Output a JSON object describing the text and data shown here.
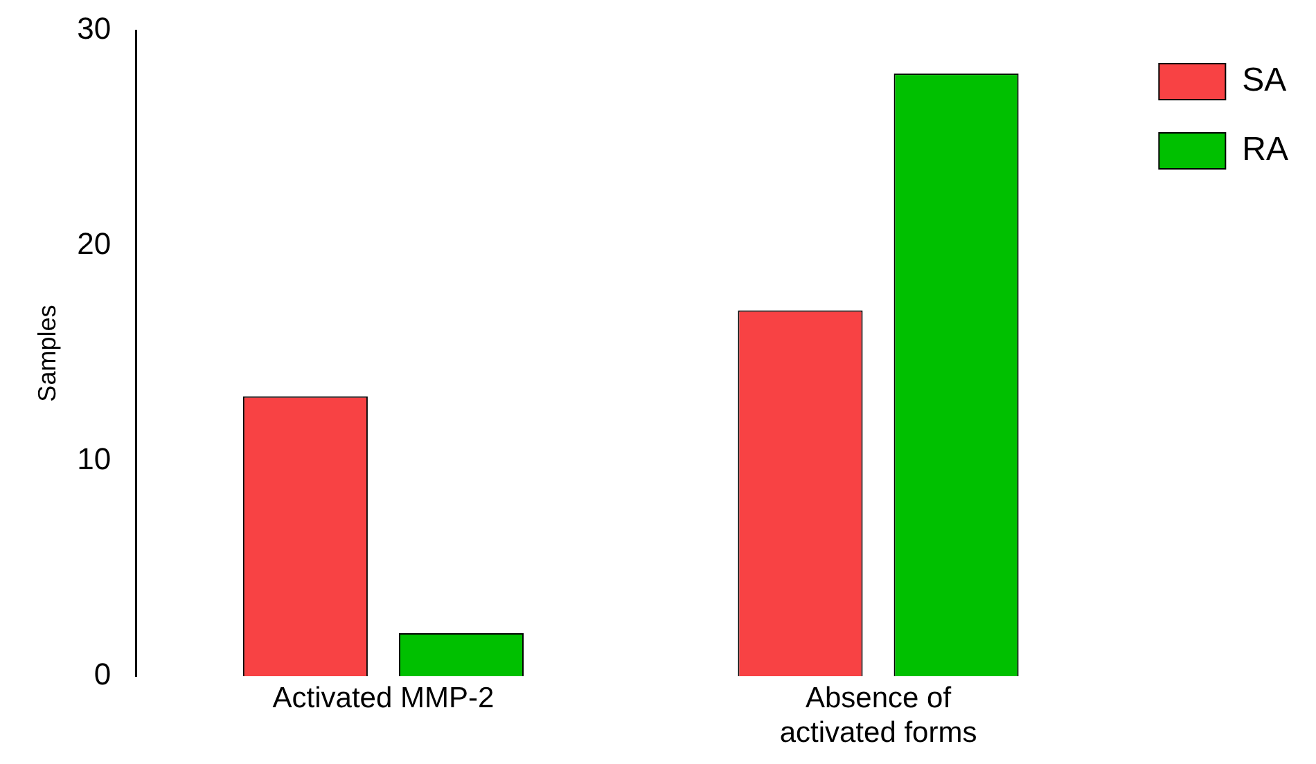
{
  "chart_data": {
    "type": "bar",
    "ylabel": "Samples",
    "categories": [
      "Activated MMP-2",
      "Absence of activated forms"
    ],
    "series": [
      {
        "name": "SA",
        "color": "#f84244",
        "values": [
          13,
          17
        ]
      },
      {
        "name": "RA",
        "color": "#00c000",
        "values": [
          2,
          28
        ]
      }
    ],
    "ylim": [
      0,
      30
    ],
    "yticks": [
      0,
      10,
      20,
      30
    ],
    "grid": false,
    "legend": "top right"
  }
}
